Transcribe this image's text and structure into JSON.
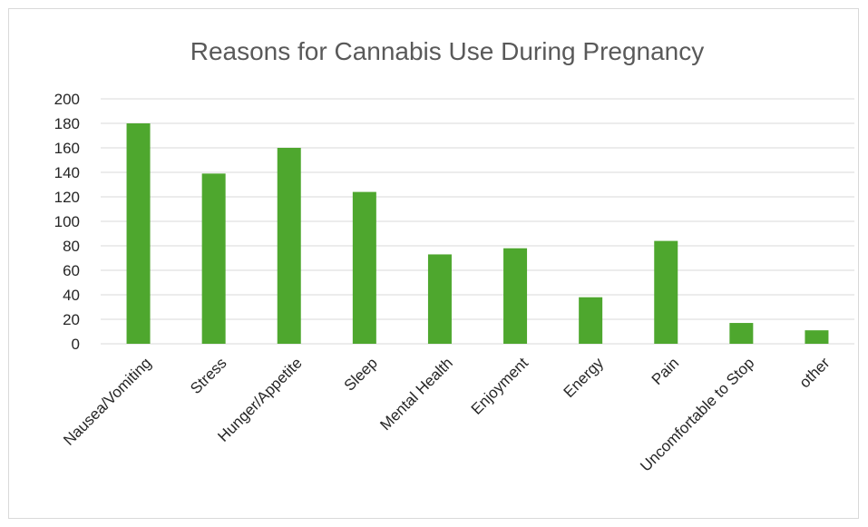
{
  "chart_data": {
    "type": "bar",
    "title": "Reasons for Cannabis Use During Pregnancy",
    "categories": [
      "Nausea/Vomiting",
      "Stress",
      "Hunger/Appetite",
      "Sleep",
      "Mental Health",
      "Enjoyment",
      "Energy",
      "Pain",
      "Uncomfortable to Stop",
      "other"
    ],
    "values": [
      180,
      139,
      160,
      124,
      73,
      78,
      38,
      84,
      17,
      11
    ],
    "ylim": [
      0,
      200
    ],
    "yticks": [
      "0",
      "20",
      "40",
      "60",
      "80",
      "100",
      "120",
      "140",
      "160",
      "180",
      "200"
    ],
    "xlabel": "",
    "ylabel": "",
    "grid": true,
    "bar_color": "#4ea72e",
    "gridline_color": "#d9d9d9"
  }
}
